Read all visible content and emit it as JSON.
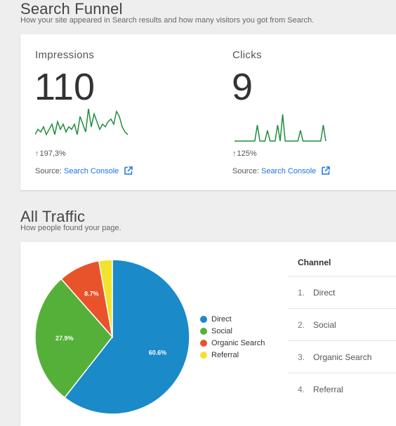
{
  "funnel": {
    "title": "Search Funnel",
    "subtitle": "How your site appeared in Search results and how many visitors you got from Search.",
    "impressions": {
      "label": "Impressions",
      "value": "110",
      "delta": "197,3%",
      "source_prefix": "Source:",
      "source_link": "Search Console",
      "sparkline": [
        2,
        4,
        3,
        5,
        2,
        4,
        6,
        2,
        7,
        4,
        6,
        3,
        5,
        4,
        6,
        2,
        9,
        6,
        3,
        12,
        5,
        10,
        7,
        4,
        6,
        5,
        7,
        8,
        6,
        11,
        9,
        5,
        3,
        2
      ]
    },
    "clicks": {
      "label": "Clicks",
      "value": "9",
      "delta": "125%",
      "source_prefix": "Source:",
      "source_link": "Search Console",
      "sparkline": [
        0,
        0,
        0,
        0,
        0,
        0,
        0,
        0,
        0,
        3,
        0,
        0,
        0,
        2,
        0,
        0,
        0,
        3,
        0,
        5,
        0,
        0,
        0,
        0,
        0,
        0,
        2,
        0,
        0,
        0,
        0,
        0,
        0,
        0,
        0,
        3,
        0
      ]
    },
    "colors": {
      "line": "#1e8e3e",
      "link": "#1a73e8"
    }
  },
  "traffic": {
    "title": "All Traffic",
    "subtitle": "How people found your page.",
    "channel_header": "Channel",
    "channels": [
      {
        "num": "1.",
        "label": "Direct"
      },
      {
        "num": "2.",
        "label": "Social"
      },
      {
        "num": "3.",
        "label": "Organic Search"
      },
      {
        "num": "4.",
        "label": "Referral"
      }
    ]
  },
  "chart_data": {
    "type": "pie",
    "series": [
      {
        "name": "Direct",
        "value": 60.6,
        "label": "60.6%",
        "color": "#1a8ac9"
      },
      {
        "name": "Social",
        "value": 27.9,
        "label": "27.9%",
        "color": "#55b03a"
      },
      {
        "name": "Organic Search",
        "value": 8.7,
        "label": "8.7%",
        "color": "#e8532c"
      },
      {
        "name": "Referral",
        "value": 2.8,
        "label": "",
        "color": "#f2e22c"
      }
    ],
    "legend": "right"
  }
}
